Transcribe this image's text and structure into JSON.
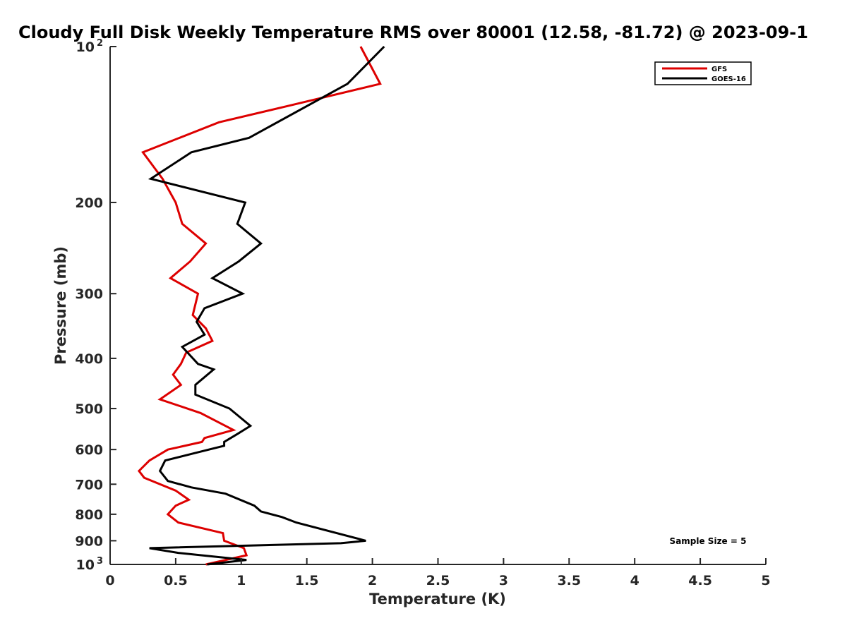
{
  "chart_data": {
    "type": "line",
    "title": "Cloudy Full Disk Weekly Temperature RMS over 80001 (12.58, -81.72) @ 2023-09-1",
    "xlabel": "Temperature (K)",
    "ylabel": "Pressure (mb)",
    "xlim": [
      0,
      5
    ],
    "ylim": [
      100,
      1000
    ],
    "y_scale": "log",
    "y_reversed": true,
    "x_ticks": [
      "0",
      "0.5",
      "1",
      "1.5",
      "2",
      "2.5",
      "3",
      "3.5",
      "4",
      "4.5",
      "5"
    ],
    "x_tick_values": [
      0,
      0.5,
      1,
      1.5,
      2,
      2.5,
      3,
      3.5,
      4,
      4.5,
      5
    ],
    "y_ticks": [
      {
        "value": 100,
        "label": "10",
        "sup": "2"
      },
      {
        "value": 200,
        "label": "200"
      },
      {
        "value": 300,
        "label": "300"
      },
      {
        "value": 400,
        "label": "400"
      },
      {
        "value": 500,
        "label": "500"
      },
      {
        "value": 600,
        "label": "600"
      },
      {
        "value": 700,
        "label": "700"
      },
      {
        "value": 800,
        "label": "800"
      },
      {
        "value": 900,
        "label": "900"
      },
      {
        "value": 1000,
        "label": "10",
        "sup": "3"
      }
    ],
    "grid": false,
    "legend_position": "top-right",
    "annotation": "Sample Size = 5",
    "series": [
      {
        "name": "GFS",
        "color": "#dd0000",
        "points": [
          [
            1.91,
            100
          ],
          [
            2.06,
            118
          ],
          [
            1.37,
            130
          ],
          [
            0.83,
            140
          ],
          [
            0.25,
            160
          ],
          [
            0.4,
            180
          ],
          [
            0.5,
            200
          ],
          [
            0.55,
            220
          ],
          [
            0.73,
            240
          ],
          [
            0.61,
            260
          ],
          [
            0.46,
            280
          ],
          [
            0.67,
            300
          ],
          [
            0.63,
            330
          ],
          [
            0.73,
            350
          ],
          [
            0.78,
            370
          ],
          [
            0.58,
            390
          ],
          [
            0.54,
            410
          ],
          [
            0.48,
            430
          ],
          [
            0.54,
            450
          ],
          [
            0.38,
            480
          ],
          [
            0.69,
            510
          ],
          [
            0.94,
            550
          ],
          [
            0.72,
            570
          ],
          [
            0.7,
            580
          ],
          [
            0.44,
            600
          ],
          [
            0.3,
            630
          ],
          [
            0.22,
            660
          ],
          [
            0.26,
            680
          ],
          [
            0.5,
            720
          ],
          [
            0.6,
            750
          ],
          [
            0.5,
            770
          ],
          [
            0.44,
            800
          ],
          [
            0.52,
            830
          ],
          [
            0.86,
            870
          ],
          [
            0.87,
            900
          ],
          [
            1.02,
            930
          ],
          [
            1.04,
            960
          ],
          [
            0.73,
            1000
          ]
        ]
      },
      {
        "name": "GOES-16",
        "color": "#000000",
        "points": [
          [
            2.09,
            100
          ],
          [
            1.81,
            118
          ],
          [
            1.06,
            150
          ],
          [
            0.62,
            160
          ],
          [
            0.31,
            180
          ],
          [
            1.03,
            200
          ],
          [
            0.97,
            220
          ],
          [
            1.15,
            240
          ],
          [
            0.98,
            260
          ],
          [
            0.78,
            280
          ],
          [
            1.01,
            300
          ],
          [
            0.72,
            320
          ],
          [
            0.66,
            340
          ],
          [
            0.72,
            360
          ],
          [
            0.55,
            380
          ],
          [
            0.67,
            410
          ],
          [
            0.79,
            420
          ],
          [
            0.65,
            450
          ],
          [
            0.65,
            470
          ],
          [
            0.91,
            500
          ],
          [
            1.07,
            540
          ],
          [
            0.97,
            560
          ],
          [
            0.87,
            580
          ],
          [
            0.87,
            590
          ],
          [
            0.64,
            610
          ],
          [
            0.42,
            630
          ],
          [
            0.38,
            660
          ],
          [
            0.44,
            690
          ],
          [
            0.62,
            710
          ],
          [
            0.88,
            730
          ],
          [
            1.1,
            770
          ],
          [
            1.15,
            790
          ],
          [
            1.31,
            810
          ],
          [
            1.42,
            830
          ],
          [
            1.95,
            900
          ],
          [
            1.76,
            910
          ],
          [
            0.3,
            930
          ],
          [
            0.52,
            950
          ],
          [
            1.04,
            980
          ],
          [
            0.74,
            1000
          ]
        ]
      }
    ]
  }
}
